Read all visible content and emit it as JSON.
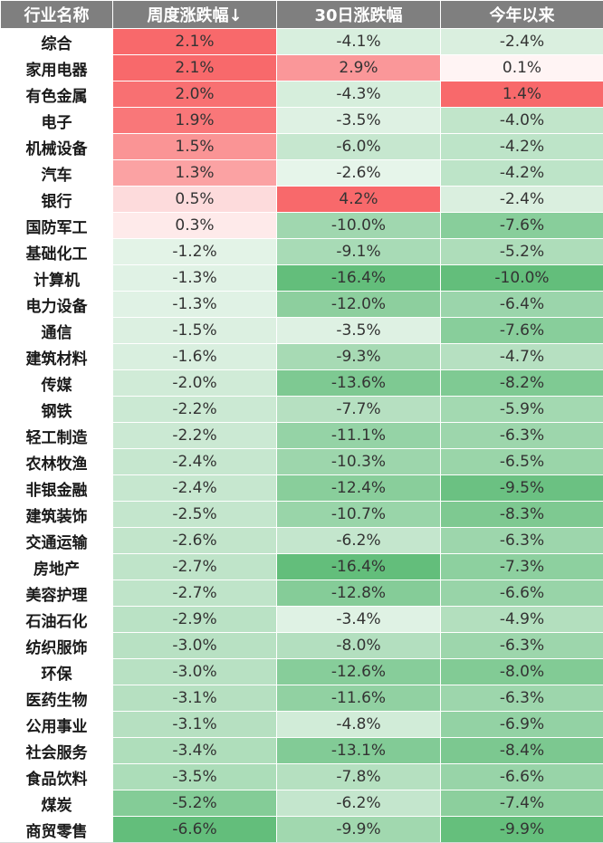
{
  "chart_data": {
    "type": "table",
    "columns": [
      "行业名称",
      "周度涨跌幅↓",
      "30日涨跌幅",
      "今年以来"
    ],
    "rows": [
      [
        "综合",
        "2.1%",
        "-4.1%",
        "-2.4%"
      ],
      [
        "家用电器",
        "2.1%",
        "2.9%",
        "0.1%"
      ],
      [
        "有色金属",
        "2.0%",
        "-4.3%",
        "1.4%"
      ],
      [
        "电子",
        "1.9%",
        "-3.5%",
        "-4.0%"
      ],
      [
        "机械设备",
        "1.5%",
        "-6.0%",
        "-4.2%"
      ],
      [
        "汽车",
        "1.3%",
        "-2.6%",
        "-4.2%"
      ],
      [
        "银行",
        "0.5%",
        "4.2%",
        "-2.4%"
      ],
      [
        "国防军工",
        "0.3%",
        "-10.0%",
        "-7.6%"
      ],
      [
        "基础化工",
        "-1.2%",
        "-9.1%",
        "-5.2%"
      ],
      [
        "计算机",
        "-1.3%",
        "-16.4%",
        "-10.0%"
      ],
      [
        "电力设备",
        "-1.3%",
        "-12.0%",
        "-6.4%"
      ],
      [
        "通信",
        "-1.5%",
        "-3.5%",
        "-7.6%"
      ],
      [
        "建筑材料",
        "-1.6%",
        "-9.3%",
        "-4.7%"
      ],
      [
        "传媒",
        "-2.0%",
        "-13.6%",
        "-8.2%"
      ],
      [
        "钢铁",
        "-2.2%",
        "-7.7%",
        "-5.9%"
      ],
      [
        "轻工制造",
        "-2.2%",
        "-11.1%",
        "-6.3%"
      ],
      [
        "农林牧渔",
        "-2.4%",
        "-10.3%",
        "-6.5%"
      ],
      [
        "非银金融",
        "-2.4%",
        "-12.4%",
        "-9.5%"
      ],
      [
        "建筑装饰",
        "-2.5%",
        "-10.7%",
        "-8.3%"
      ],
      [
        "交通运输",
        "-2.6%",
        "-6.2%",
        "-6.3%"
      ],
      [
        "房地产",
        "-2.7%",
        "-16.4%",
        "-7.3%"
      ],
      [
        "美容护理",
        "-2.7%",
        "-12.8%",
        "-6.6%"
      ],
      [
        "石油石化",
        "-2.9%",
        "-3.4%",
        "-4.9%"
      ],
      [
        "纺织服饰",
        "-3.0%",
        "-8.0%",
        "-6.3%"
      ],
      [
        "环保",
        "-3.0%",
        "-12.6%",
        "-8.0%"
      ],
      [
        "医药生物",
        "-3.1%",
        "-11.6%",
        "-6.3%"
      ],
      [
        "公用事业",
        "-3.1%",
        "-4.8%",
        "-6.9%"
      ],
      [
        "社会服务",
        "-3.4%",
        "-13.1%",
        "-8.4%"
      ],
      [
        "食品饮料",
        "-3.5%",
        "-7.8%",
        "-6.6%"
      ],
      [
        "煤炭",
        "-5.2%",
        "-6.2%",
        "-7.4%"
      ],
      [
        "商贸零售",
        "-6.6%",
        "-9.9%",
        "-9.9%"
      ]
    ],
    "colors": {
      "header_bg": "#7f7f7f",
      "header_text": "#ffffff",
      "positive_max": "#f8696b",
      "negative_max": "#63be7b",
      "neutral": "#ffffff"
    }
  }
}
